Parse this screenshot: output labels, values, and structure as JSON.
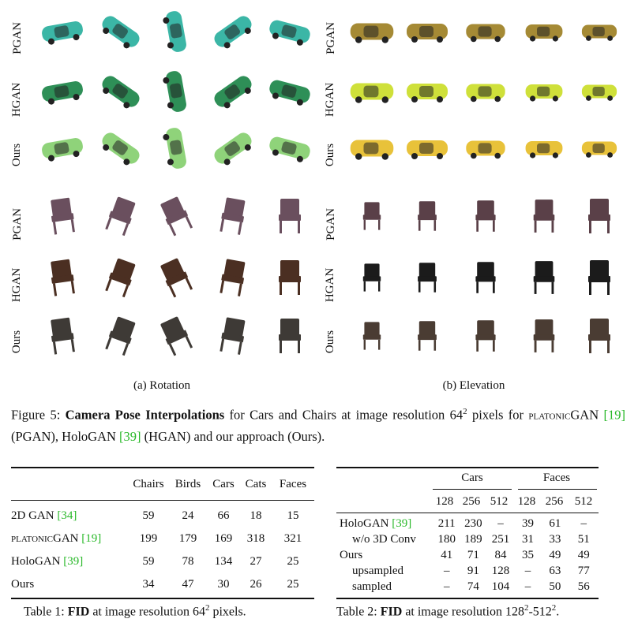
{
  "figure": {
    "row_labels": {
      "cars_rotation": [
        "PGAN",
        "HGAN",
        "Ours"
      ],
      "cars_elevation": [
        "PGAN",
        "HGAN",
        "Ours"
      ],
      "chairs_rotation": [
        "PGAN",
        "HGAN",
        "Ours"
      ],
      "chairs_elevation": [
        "PGAN",
        "HGAN",
        "Ours"
      ]
    },
    "sub_captions": {
      "left": "(a) Rotation",
      "right": "(b) Elevation"
    },
    "caption": {
      "prefix": "Figure 5: ",
      "bold": "Camera Pose Interpolations",
      "text1": " for Cars and Chairs at image resolution 64",
      "sup": "2",
      "text2": " pixels for ",
      "platonic": "platonic",
      "gan": "GAN ",
      "cite1": "[19]",
      "text3": " (PGAN), HoloGAN  ",
      "cite2": "[39]",
      "text4": " (HGAN) and our approach (Ours)."
    },
    "colors": {
      "pgan_car": "#3bb6a6",
      "hgan_car": "#2e8f57",
      "ours_car": "#8fd37a",
      "pgan_car_elev": "#a58a35",
      "hgan_car_elev": "#cfe03a",
      "ours_car_elev": "#e8c23a",
      "pgan_chair": "#6a4f5e",
      "hgan_chair": "#4b2f22",
      "ours_chair": "#3e3a36",
      "pgan_chair_elev": "#5a4048",
      "hgan_chair_elev": "#1b1b1b",
      "ours_chair_elev": "#4a3c33",
      "cite": "#28b828"
    }
  },
  "table1": {
    "headers": [
      "",
      "Chairs",
      "Birds",
      "Cars",
      "Cats",
      "Faces"
    ],
    "rows": [
      {
        "name": "2D GAN ",
        "cite": "[34]",
        "values": [
          "59",
          "24",
          "66",
          "18",
          "15"
        ]
      },
      {
        "name_sc": "platonic",
        "name": "GAN ",
        "cite": "[19]",
        "values": [
          "199",
          "179",
          "169",
          "318",
          "321"
        ]
      },
      {
        "name": "HoloGAN ",
        "cite": "[39]",
        "values": [
          "59",
          "78",
          "134",
          "27",
          "25"
        ]
      },
      {
        "name": "Ours",
        "cite": "",
        "values": [
          "34",
          "47",
          "30",
          "26",
          "25"
        ]
      }
    ],
    "caption": {
      "prefix": "Table 1: ",
      "bold": "FID",
      "text": " at image resolution 64",
      "sup": "2",
      "suffix": " pixels."
    }
  },
  "table2": {
    "group_headers": [
      "Cars",
      "Faces"
    ],
    "sub_headers": [
      "128",
      "256",
      "512",
      "128",
      "256",
      "512"
    ],
    "rows": [
      {
        "name": "HoloGAN ",
        "cite": "[39]",
        "values": [
          "211",
          "230",
          "–",
          "39",
          "61",
          "–"
        ]
      },
      {
        "name": "w/o 3D Conv",
        "cite": "",
        "values": [
          "180",
          "189",
          "251",
          "31",
          "33",
          "51"
        ]
      },
      {
        "name": "Ours",
        "cite": "",
        "values": [
          "41",
          "71",
          "84",
          "35",
          "49",
          "49"
        ]
      },
      {
        "name": "upsampled",
        "cite": "",
        "values": [
          "–",
          "91",
          "128",
          "–",
          "63",
          "77"
        ]
      },
      {
        "name": "sampled",
        "cite": "",
        "values": [
          "–",
          "74",
          "104",
          "–",
          "50",
          "56"
        ]
      }
    ],
    "caption": {
      "prefix": "Table 2: ",
      "bold": "FID",
      "text": " at image resolution 128",
      "sup1": "2",
      "dash": "-512",
      "sup2": "2",
      "suffix": "."
    }
  }
}
